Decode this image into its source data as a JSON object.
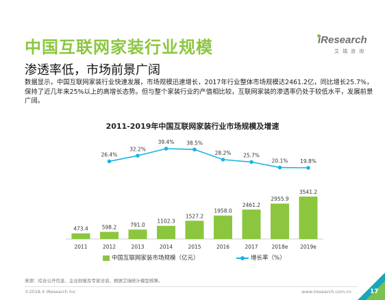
{
  "header": {
    "title": "中国互联网家装行业规模",
    "subtitle": "渗透率低，市场前景广阔",
    "paragraph": "数据显示，中国互联网家装行业快速发展，市场规模迅速增长，2017年行业整体市场规模达2461.2亿，同比增长25.7%，保持了近几年来25%以上的高增长态势。但与整个家装行业的产值相比较，互联网家装的渗透率仍处于较低水平，发展前景广阔。"
  },
  "logo": {
    "brand": "iResearch",
    "sub": "艾瑞咨询"
  },
  "colors": {
    "accent": "#8cc63f",
    "line": "#19b4e3",
    "corner_teal": "#1aa6b7"
  },
  "chart_data": {
    "type": "bar",
    "title": "2011-2019年中国互联网家装行业市场规模及增速",
    "categories": [
      "2011",
      "2012",
      "2013",
      "2014",
      "2015",
      "2016",
      "2017",
      "2018e",
      "2019e"
    ],
    "series": [
      {
        "name": "中国互联网家装市场规模（亿元）",
        "type": "bar",
        "values": [
          473.4,
          598.2,
          791.0,
          1102.3,
          1527.2,
          1958.0,
          2461.2,
          2955.9,
          3541.2
        ],
        "labels": [
          "473.4",
          "598.2",
          "791.0",
          "1102.3",
          "1527.2",
          "1958.0",
          "2461.2",
          "2955.9",
          "3541.2"
        ]
      },
      {
        "name": "增长率（%）",
        "type": "line",
        "x": [
          "2012",
          "2013",
          "2014",
          "2015",
          "2016",
          "2017",
          "2018e",
          "2019e"
        ],
        "values": [
          26.4,
          32.2,
          39.4,
          38.5,
          28.2,
          25.7,
          20.1,
          19.8
        ],
        "labels": [
          "26.4%",
          "32.2%",
          "39.4%",
          "38.5%",
          "28.2%",
          "25.7%",
          "20.1%",
          "19.8%"
        ]
      }
    ],
    "legend_placement": "bottom",
    "grid": false
  },
  "footer": {
    "source": "来源：综合公开信息、企业财报及专家访谈，根据艾瑞统计模型核算。",
    "copyright": "©2018.4 iResearch Inc",
    "website": "www.iresearch.com.cn",
    "page_number": "17"
  }
}
